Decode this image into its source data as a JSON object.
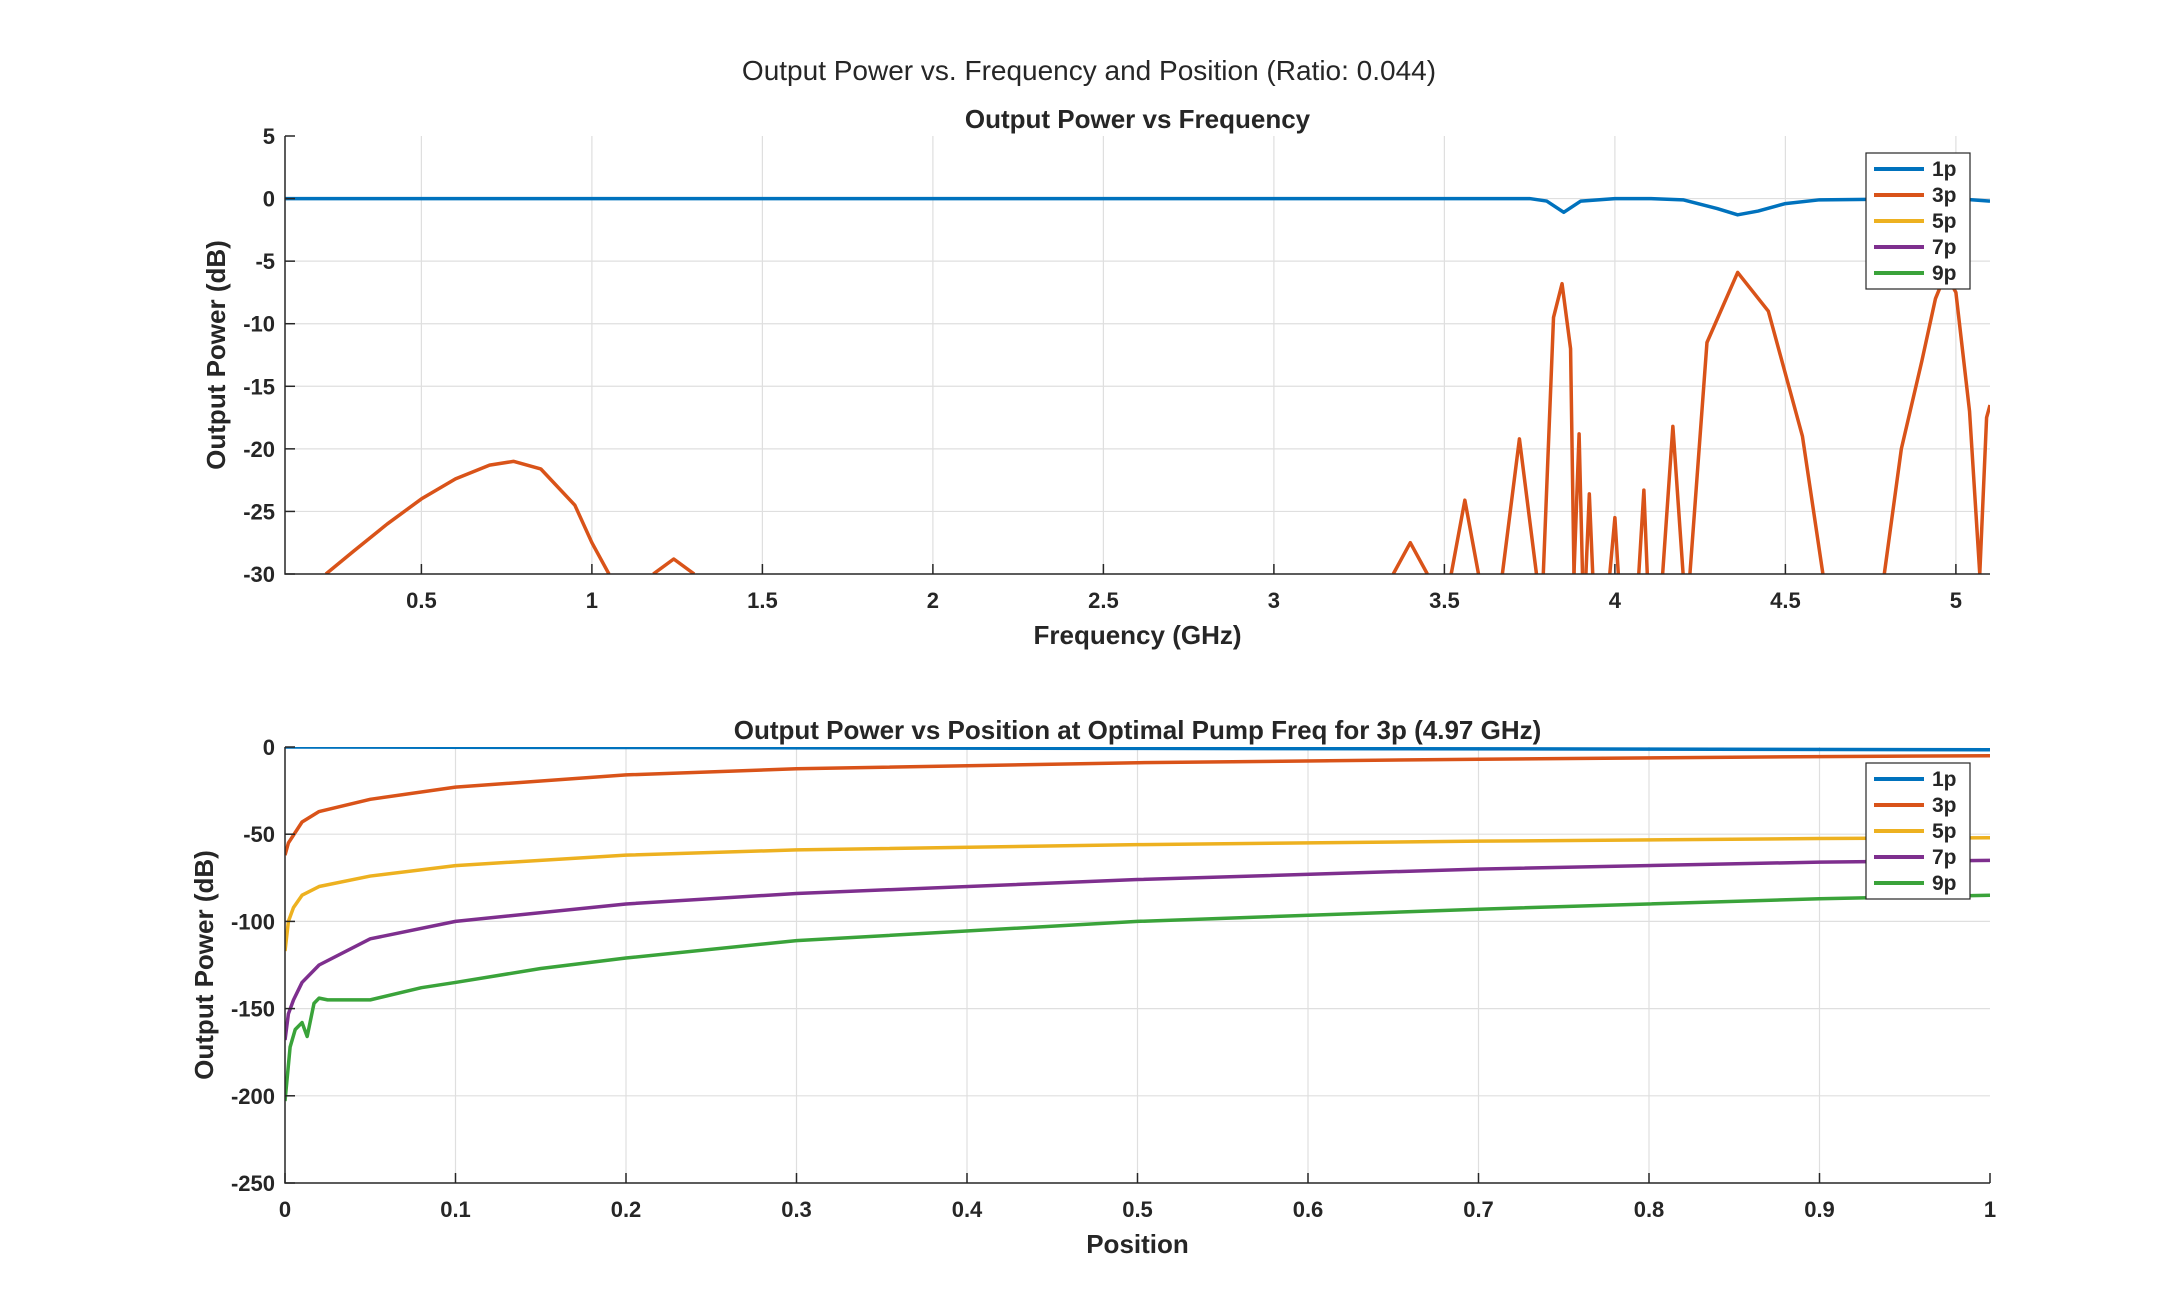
{
  "figure_title": "Output Power vs. Frequency and Position (Ratio: 0.044)",
  "colors": {
    "1p": "#0072BD",
    "3p": "#D95319",
    "5p": "#EDB120",
    "7p": "#7E2F8E",
    "9p": "#3AA33A"
  },
  "chart_data": [
    {
      "type": "line",
      "title": "Output Power vs Frequency",
      "xlabel": "Frequency (GHz)",
      "ylabel": "Output Power (dB)",
      "xlim": [
        0.1,
        5.1
      ],
      "ylim": [
        -30,
        5
      ],
      "xticks": [
        0.5,
        1,
        1.5,
        2,
        2.5,
        3,
        3.5,
        4,
        4.5,
        5
      ],
      "xtick_labels": [
        "0.5",
        "1",
        "1.5",
        "2",
        "2.5",
        "3",
        "3.5",
        "4",
        "4.5",
        "5"
      ],
      "yticks": [
        5,
        0,
        -5,
        -10,
        -15,
        -20,
        -25,
        -30
      ],
      "ytick_labels": [
        "5",
        "0",
        "-5",
        "-10",
        "-15",
        "-20",
        "-25",
        "-30"
      ],
      "grid": true,
      "legend": "top-right",
      "legend_entries": [
        "1p",
        "3p",
        "5p",
        "7p",
        "9p"
      ],
      "series": [
        {
          "name": "1p",
          "x": [
            0.1,
            1.0,
            2.0,
            3.0,
            3.5,
            3.75,
            3.8,
            3.85,
            3.9,
            3.95,
            4.0,
            4.1,
            4.2,
            4.3,
            4.36,
            4.42,
            4.5,
            4.6,
            5.0,
            5.1
          ],
          "y": [
            0.0,
            0.0,
            0.0,
            0.0,
            0.0,
            0.0,
            -0.2,
            -1.1,
            -0.2,
            -0.1,
            0.0,
            0.0,
            -0.1,
            -0.8,
            -1.3,
            -1.0,
            -0.4,
            -0.1,
            0.0,
            -0.2
          ]
        },
        {
          "segments": [
            {
              "x": [
                0.22,
                0.3,
                0.4,
                0.5,
                0.6,
                0.7,
                0.77,
                0.85,
                0.95,
                1.0,
                1.05
              ],
              "y": [
                -30,
                -28.2,
                -26.0,
                -24.0,
                -22.4,
                -21.3,
                -21.0,
                -21.6,
                -24.5,
                -27.5,
                -30
              ]
            },
            {
              "x": [
                1.18,
                1.24,
                1.3
              ],
              "y": [
                -30,
                -28.8,
                -30
              ]
            },
            {
              "x": [
                3.35,
                3.4,
                3.45
              ],
              "y": [
                -30,
                -27.5,
                -30
              ]
            },
            {
              "x": [
                3.52,
                3.56,
                3.6
              ],
              "y": [
                -30,
                -24.1,
                -30
              ]
            },
            {
              "x": [
                3.67,
                3.72,
                3.77
              ],
              "y": [
                -30,
                -19.2,
                -30
              ]
            },
            {
              "x": [
                3.79,
                3.82,
                3.845,
                3.87,
                3.88
              ],
              "y": [
                -30,
                -9.5,
                -6.8,
                -12.0,
                -30
              ]
            },
            {
              "x": [
                3.88,
                3.895,
                3.905
              ],
              "y": [
                -30,
                -18.8,
                -30
              ]
            },
            {
              "x": [
                3.915,
                3.925,
                3.935
              ],
              "y": [
                -30,
                -23.6,
                -30
              ]
            },
            {
              "x": [
                3.985,
                4.0,
                4.01
              ],
              "y": [
                -30,
                -25.5,
                -30
              ]
            },
            {
              "x": [
                4.07,
                4.085,
                4.095
              ],
              "y": [
                -30,
                -23.3,
                -30
              ]
            },
            {
              "x": [
                4.14,
                4.17,
                4.2
              ],
              "y": [
                -30,
                -18.2,
                -30
              ]
            },
            {
              "x": [
                4.22,
                4.27,
                4.36,
                4.45,
                4.55,
                4.61
              ],
              "y": [
                -30,
                -11.5,
                -5.9,
                -9.0,
                -19.0,
                -30
              ]
            },
            {
              "x": [
                4.79,
                4.84,
                4.9,
                4.94,
                4.97,
                5.0,
                5.04,
                5.07
              ],
              "y": [
                -30,
                -20.0,
                -13.0,
                -8.0,
                -6.0,
                -7.5,
                -17.0,
                -30
              ]
            },
            {
              "x": [
                5.07,
                5.09,
                5.1
              ],
              "y": [
                -30,
                -17.5,
                -16.5
              ]
            }
          ]
        }
      ]
    },
    {
      "type": "line",
      "title": "Output Power vs Position at Optimal Pump Freq for 3p (4.97 GHz)",
      "xlabel": "Position",
      "ylabel": "Output Power (dB)",
      "xlim": [
        0,
        1
      ],
      "ylim": [
        -250,
        0
      ],
      "xticks": [
        0,
        0.1,
        0.2,
        0.3,
        0.4,
        0.5,
        0.6,
        0.7,
        0.8,
        0.9,
        1
      ],
      "xtick_labels": [
        "0",
        "0.1",
        "0.2",
        "0.3",
        "0.4",
        "0.5",
        "0.6",
        "0.7",
        "0.8",
        "0.9",
        "1"
      ],
      "yticks": [
        0,
        -50,
        -100,
        -150,
        -200,
        -250
      ],
      "ytick_labels": [
        "0",
        "-50",
        "-100",
        "-150",
        "-200",
        "-250"
      ],
      "grid": true,
      "legend": "top-right",
      "legend_entries": [
        "1p",
        "3p",
        "5p",
        "7p",
        "9p"
      ],
      "series": [
        {
          "name": "1p",
          "x": [
            0,
            0.2,
            0.5,
            0.8,
            1.0
          ],
          "y": [
            0,
            -0.3,
            -0.8,
            -1.2,
            -1.6
          ]
        },
        {
          "name": "3p",
          "x": [
            0,
            0.002,
            0.01,
            0.02,
            0.05,
            0.1,
            0.2,
            0.3,
            0.5,
            0.7,
            0.9,
            1.0
          ],
          "y": [
            -62,
            -55,
            -43,
            -37,
            -30,
            -23,
            -16,
            -12.5,
            -9,
            -7,
            -5.5,
            -5
          ]
        },
        {
          "name": "5p",
          "x": [
            0,
            0.002,
            0.005,
            0.01,
            0.02,
            0.05,
            0.1,
            0.2,
            0.3,
            0.5,
            0.7,
            0.9,
            1.0
          ],
          "y": [
            -117,
            -100,
            -92,
            -85,
            -80,
            -74,
            -68,
            -62,
            -59,
            -56,
            -54,
            -52.5,
            -52
          ]
        },
        {
          "name": "7p",
          "x": [
            0,
            0.002,
            0.005,
            0.01,
            0.02,
            0.05,
            0.1,
            0.2,
            0.3,
            0.5,
            0.7,
            0.9,
            1.0
          ],
          "y": [
            -168,
            -153,
            -145,
            -135,
            -125,
            -110,
            -100,
            -90,
            -84,
            -76,
            -70,
            -66,
            -65
          ]
        },
        {
          "name": "9p",
          "x": [
            0,
            0.003,
            0.006,
            0.01,
            0.013,
            0.017,
            0.02,
            0.025,
            0.05,
            0.08,
            0.1,
            0.15,
            0.2,
            0.3,
            0.5,
            0.7,
            0.9,
            1.0
          ],
          "y": [
            -203,
            -172,
            -162,
            -158,
            -166,
            -147,
            -144,
            -145,
            -145,
            -138,
            -135,
            -127,
            -121,
            -111,
            -100,
            -93,
            -87,
            -85
          ]
        }
      ]
    }
  ]
}
